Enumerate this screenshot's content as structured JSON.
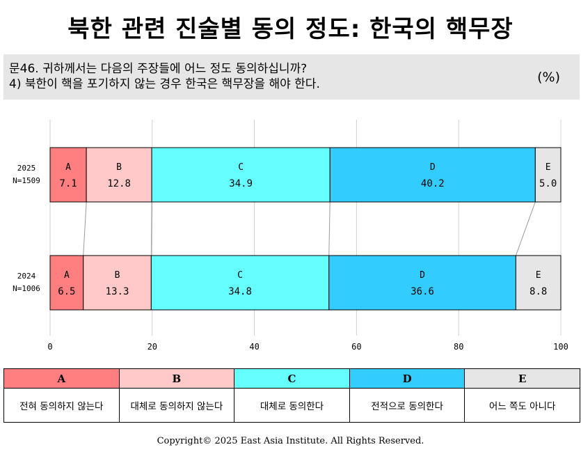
{
  "page": {
    "title": "북한 관련 진술별 동의 정도: 한국의 핵무장",
    "question_line1": "문46. 귀하께서는 다음의 주장들에 어느 정도 동의하십니까?",
    "question_line2": "4) 북한이 핵을 포기하지 않는 경우 한국은 핵무장을 해야 한다.",
    "unit": "(%)",
    "copyright": "Copyright© 2025 East Asia Institute. All Rights Reserved."
  },
  "legend": [
    {
      "key": "A",
      "label": "전혀 동의하지 않는다",
      "color": "#ff7f80"
    },
    {
      "key": "B",
      "label": "대체로 동의하지 않는다",
      "color": "#ffc9c9"
    },
    {
      "key": "C",
      "label": "대체로 동의한다",
      "color": "#66ffff"
    },
    {
      "key": "D",
      "label": "전적으로 동의한다",
      "color": "#33ccff"
    },
    {
      "key": "E",
      "label": "어느 쪽도 아니다",
      "color": "#e6e6e6"
    }
  ],
  "chart_data": {
    "type": "bar",
    "orientation": "horizontal-stacked",
    "categories": [
      "2025",
      "2024"
    ],
    "category_sub": [
      "N=1509",
      "N=1006"
    ],
    "series": [
      {
        "name": "A",
        "values": [
          7.1,
          6.5
        ]
      },
      {
        "name": "B",
        "values": [
          12.8,
          13.3
        ]
      },
      {
        "name": "C",
        "values": [
          34.9,
          34.8
        ]
      },
      {
        "name": "D",
        "values": [
          40.2,
          36.6
        ]
      },
      {
        "name": "E",
        "values": [
          5.0,
          8.8
        ]
      }
    ],
    "xlim": [
      0,
      100
    ],
    "xticks": [
      0,
      20,
      40,
      60,
      80,
      100
    ],
    "grid": true,
    "connector_lines": true
  }
}
